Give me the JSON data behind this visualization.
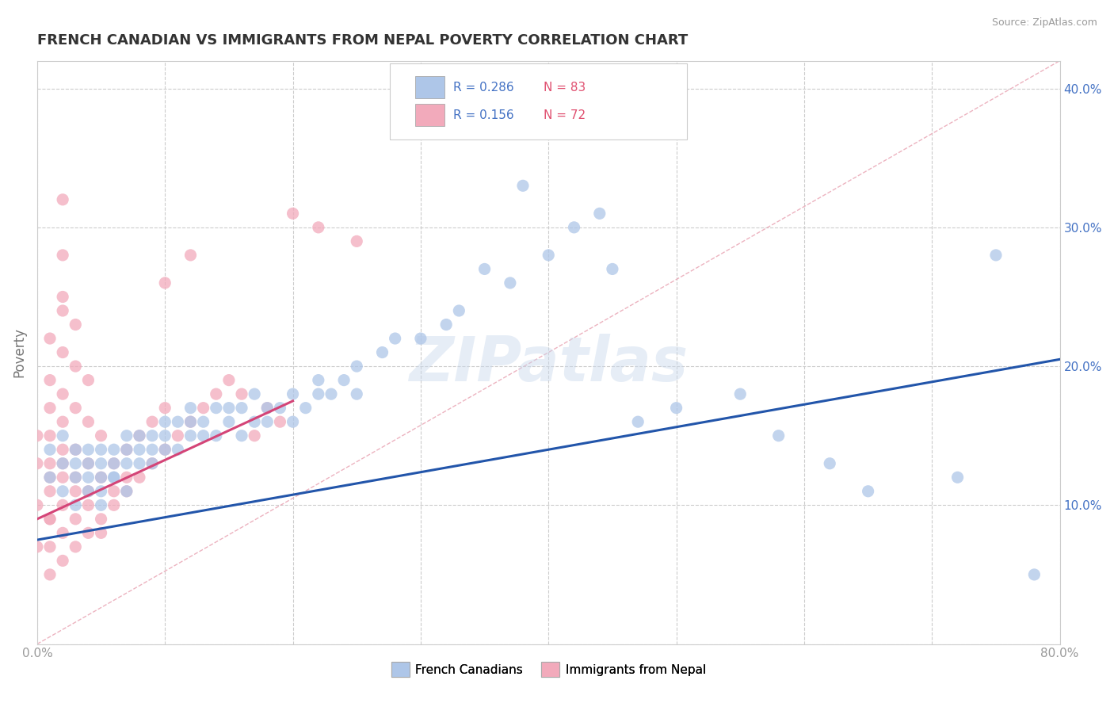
{
  "title": "FRENCH CANADIAN VS IMMIGRANTS FROM NEPAL POVERTY CORRELATION CHART",
  "source": "Source: ZipAtlas.com",
  "ylabel": "Poverty",
  "watermark": "ZIPatlas",
  "legend_r1": "0.286",
  "legend_n1": "83",
  "legend_r2": "0.156",
  "legend_n2": "72",
  "color_blue": "#aec6e8",
  "color_pink": "#f2aabb",
  "line_blue": "#2255aa",
  "line_pink": "#d44477",
  "line_diag_color": "#e8a0b0",
  "xlim": [
    0.0,
    0.8
  ],
  "ylim": [
    0.0,
    0.42
  ],
  "xticks": [
    0.0,
    0.1,
    0.2,
    0.3,
    0.4,
    0.5,
    0.6,
    0.7,
    0.8
  ],
  "yticks": [
    0.0,
    0.1,
    0.2,
    0.3,
    0.4
  ],
  "title_color": "#333333",
  "title_fontsize": 13,
  "axis_label_color": "#777777",
  "tick_color_y": "#4472c4",
  "tick_color_x": "#999999",
  "source_color": "#999999",
  "blue_x": [
    0.01,
    0.01,
    0.02,
    0.02,
    0.02,
    0.03,
    0.03,
    0.03,
    0.03,
    0.04,
    0.04,
    0.04,
    0.04,
    0.05,
    0.05,
    0.05,
    0.05,
    0.05,
    0.06,
    0.06,
    0.06,
    0.06,
    0.07,
    0.07,
    0.07,
    0.07,
    0.08,
    0.08,
    0.08,
    0.09,
    0.09,
    0.09,
    0.1,
    0.1,
    0.1,
    0.11,
    0.11,
    0.12,
    0.12,
    0.12,
    0.13,
    0.13,
    0.14,
    0.14,
    0.15,
    0.15,
    0.16,
    0.16,
    0.17,
    0.17,
    0.18,
    0.18,
    0.19,
    0.2,
    0.2,
    0.21,
    0.22,
    0.22,
    0.23,
    0.24,
    0.25,
    0.25,
    0.27,
    0.28,
    0.3,
    0.32,
    0.33,
    0.35,
    0.37,
    0.38,
    0.4,
    0.42,
    0.44,
    0.45,
    0.47,
    0.5,
    0.55,
    0.58,
    0.62,
    0.65,
    0.72,
    0.75,
    0.78
  ],
  "blue_y": [
    0.12,
    0.14,
    0.11,
    0.13,
    0.15,
    0.1,
    0.12,
    0.14,
    0.13,
    0.11,
    0.13,
    0.14,
    0.12,
    0.1,
    0.12,
    0.13,
    0.14,
    0.11,
    0.12,
    0.13,
    0.14,
    0.12,
    0.11,
    0.13,
    0.14,
    0.15,
    0.13,
    0.14,
    0.15,
    0.13,
    0.14,
    0.15,
    0.14,
    0.15,
    0.16,
    0.14,
    0.16,
    0.15,
    0.16,
    0.17,
    0.15,
    0.16,
    0.15,
    0.17,
    0.16,
    0.17,
    0.15,
    0.17,
    0.16,
    0.18,
    0.16,
    0.17,
    0.17,
    0.16,
    0.18,
    0.17,
    0.18,
    0.19,
    0.18,
    0.19,
    0.18,
    0.2,
    0.21,
    0.22,
    0.22,
    0.23,
    0.24,
    0.27,
    0.26,
    0.33,
    0.28,
    0.3,
    0.31,
    0.27,
    0.16,
    0.17,
    0.18,
    0.15,
    0.13,
    0.11,
    0.12,
    0.28,
    0.05
  ],
  "pink_x": [
    0.0,
    0.0,
    0.0,
    0.0,
    0.01,
    0.01,
    0.01,
    0.01,
    0.01,
    0.01,
    0.01,
    0.01,
    0.01,
    0.01,
    0.01,
    0.02,
    0.02,
    0.02,
    0.02,
    0.02,
    0.02,
    0.02,
    0.02,
    0.02,
    0.02,
    0.02,
    0.02,
    0.02,
    0.03,
    0.03,
    0.03,
    0.03,
    0.03,
    0.03,
    0.03,
    0.03,
    0.04,
    0.04,
    0.04,
    0.04,
    0.04,
    0.04,
    0.05,
    0.05,
    0.05,
    0.05,
    0.06,
    0.06,
    0.06,
    0.07,
    0.07,
    0.07,
    0.08,
    0.08,
    0.09,
    0.09,
    0.1,
    0.1,
    0.11,
    0.12,
    0.13,
    0.14,
    0.15,
    0.16,
    0.17,
    0.18,
    0.19,
    0.1,
    0.12,
    0.2,
    0.22,
    0.25
  ],
  "pink_y": [
    0.07,
    0.1,
    0.13,
    0.15,
    0.05,
    0.07,
    0.09,
    0.11,
    0.13,
    0.15,
    0.17,
    0.19,
    0.22,
    0.09,
    0.12,
    0.06,
    0.08,
    0.1,
    0.12,
    0.14,
    0.16,
    0.18,
    0.21,
    0.24,
    0.28,
    0.32,
    0.25,
    0.13,
    0.07,
    0.09,
    0.11,
    0.14,
    0.17,
    0.2,
    0.23,
    0.12,
    0.08,
    0.1,
    0.13,
    0.16,
    0.19,
    0.11,
    0.09,
    0.12,
    0.15,
    0.08,
    0.1,
    0.13,
    0.11,
    0.11,
    0.14,
    0.12,
    0.12,
    0.15,
    0.13,
    0.16,
    0.14,
    0.17,
    0.15,
    0.16,
    0.17,
    0.18,
    0.19,
    0.18,
    0.15,
    0.17,
    0.16,
    0.26,
    0.28,
    0.31,
    0.3,
    0.29
  ],
  "blue_line_x0": 0.0,
  "blue_line_y0": 0.075,
  "blue_line_x1": 0.8,
  "blue_line_y1": 0.205,
  "pink_line_x0": 0.0,
  "pink_line_y0": 0.09,
  "pink_line_x1": 0.2,
  "pink_line_y1": 0.175
}
